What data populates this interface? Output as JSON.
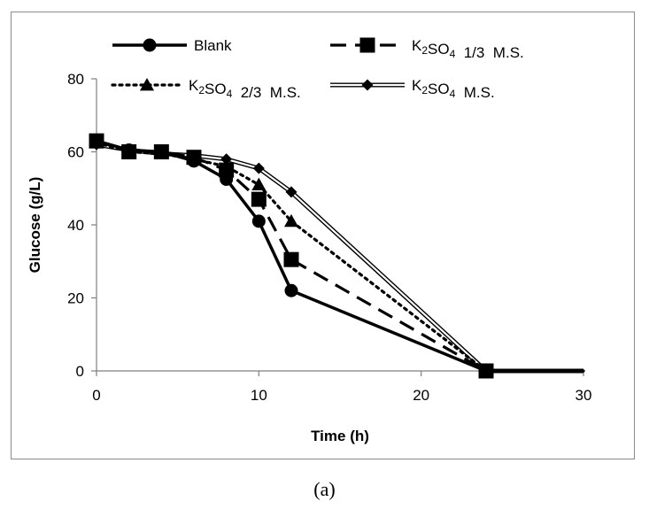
{
  "chart_data": {
    "type": "line",
    "title": "",
    "xlabel": "Time (h)",
    "ylabel": "Glucose  (g/L)",
    "xlim": [
      0,
      30
    ],
    "ylim": [
      0,
      80
    ],
    "xticks": [
      0,
      10,
      20,
      30
    ],
    "yticks": [
      0,
      20,
      40,
      60,
      80
    ],
    "grid": false,
    "legend_position": "top",
    "series": [
      {
        "name": "Blank",
        "label_main": "Blank",
        "label_sub": "",
        "label_tail": "",
        "marker": "circle",
        "line": "solid",
        "x": [
          0,
          2,
          4,
          6,
          8,
          10,
          12,
          24,
          30
        ],
        "y": [
          63,
          60.5,
          60,
          57.5,
          52.5,
          41,
          22,
          0,
          0
        ]
      },
      {
        "name": "K2SO4 1/3 M.S.",
        "label_main": "K",
        "label_sub": "2",
        "label_mid": "SO",
        "label_sub2": "4",
        "label_tail": "  1/3  M.S.",
        "marker": "square",
        "line": "dashed",
        "x": [
          0,
          2,
          4,
          6,
          8,
          10,
          12,
          24,
          30
        ],
        "y": [
          63,
          60,
          60,
          58.5,
          55,
          47,
          30.5,
          0,
          0
        ]
      },
      {
        "name": "K2SO4 2/3 M.S.",
        "label_main": "K",
        "label_sub": "2",
        "label_mid": "SO",
        "label_sub2": "4",
        "label_tail": "  2/3  M.S.",
        "marker": "triangle",
        "line": "dotted",
        "x": [
          0,
          2,
          4,
          6,
          8,
          10,
          12,
          24,
          30
        ],
        "y": [
          62.5,
          60,
          59.5,
          58,
          56,
          51,
          41,
          0,
          0
        ]
      },
      {
        "name": "K2SO4 M.S.",
        "label_main": "K",
        "label_sub": "2",
        "label_mid": "SO",
        "label_sub2": "4",
        "label_tail": "  M.S.",
        "marker": "diamond",
        "line": "double",
        "x": [
          0,
          2,
          4,
          6,
          8,
          10,
          12,
          24,
          30
        ],
        "y": [
          62,
          60.5,
          59.5,
          59,
          58,
          55.5,
          49,
          0,
          0
        ]
      }
    ]
  },
  "caption": "(a)"
}
